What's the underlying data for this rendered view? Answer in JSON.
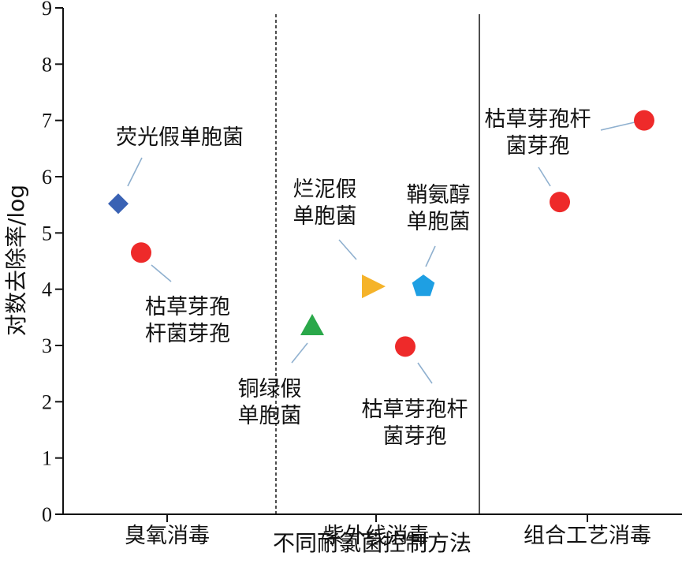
{
  "chart_data": {
    "type": "scatter",
    "xlabel": "不同耐氯菌控制方法",
    "ylabel": "对数去除率/log",
    "ylim": [
      0,
      9
    ],
    "y_ticks": [
      0,
      1,
      2,
      3,
      4,
      5,
      6,
      7,
      8,
      9
    ],
    "categories": [
      "臭氧消毒",
      "紫外线消毒",
      "组合工艺消毒"
    ],
    "grid": false,
    "points": [
      {
        "category": "臭氧消毒",
        "y": 5.52,
        "marker": "diamond",
        "color": "#3a62b4",
        "label_lines": [
          "荧光假单胞菌"
        ]
      },
      {
        "category": "臭氧消毒",
        "y": 4.65,
        "marker": "circle",
        "color": "#ee2a2a",
        "label_lines": [
          "枯草芽孢",
          "杆菌芽孢"
        ]
      },
      {
        "category": "紫外线消毒",
        "y": 3.35,
        "marker": "triangle-up",
        "color": "#2aa84a",
        "label_lines": [
          "铜绿假",
          "单胞菌"
        ]
      },
      {
        "category": "紫外线消毒",
        "y": 4.05,
        "marker": "triangle-right",
        "color": "#f5b32a",
        "label_lines": [
          "烂泥假",
          "单胞菌"
        ]
      },
      {
        "category": "紫外线消毒",
        "y": 4.05,
        "marker": "pentagon",
        "color": "#1e9fe3",
        "label_lines": [
          "鞘氨醇",
          "单胞菌"
        ]
      },
      {
        "category": "紫外线消毒",
        "y": 2.98,
        "marker": "circle",
        "color": "#ee2a2a",
        "label_lines": [
          "枯草芽孢杆",
          "菌芽孢"
        ]
      },
      {
        "category": "组合工艺消毒",
        "y": 5.55,
        "marker": "circle",
        "color": "#ee2a2a",
        "label_lines": [
          "枯草芽孢杆",
          "菌芽孢"
        ]
      },
      {
        "category": "组合工艺消毒",
        "y": 7.0,
        "marker": "circle",
        "color": "#ee2a2a",
        "label_lines": []
      }
    ]
  }
}
